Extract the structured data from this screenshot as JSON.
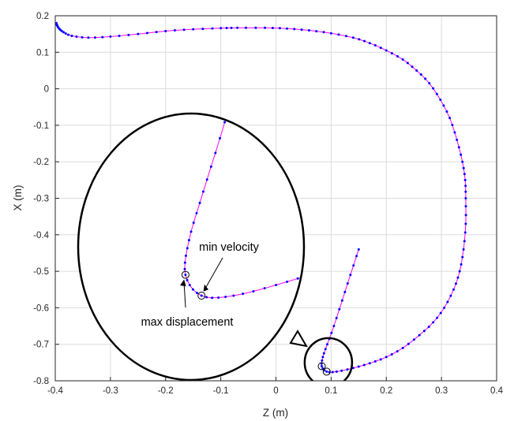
{
  "chart_data": {
    "type": "line",
    "title": "",
    "xlabel": "Z (m)",
    "ylabel": "X (m)",
    "xlim": [
      -0.4,
      0.4
    ],
    "ylim": [
      -0.8,
      0.2
    ],
    "x_ticks": [
      "-0.4",
      "-0.3",
      "-0.2",
      "-0.1",
      "0",
      "0.1",
      "0.2",
      "0.3",
      "0.4"
    ],
    "y_ticks": [
      "0.2",
      "0.1",
      "0",
      "-0.1",
      "-0.2",
      "-0.3",
      "-0.4",
      "-0.5",
      "-0.6",
      "-0.7",
      "-0.8"
    ],
    "grid": true,
    "line_color": "#ff00ff",
    "marker_color": "#0000ff",
    "series": [
      {
        "values_xy": [
          [
            0.15,
            -0.44
          ],
          [
            0.135,
            -0.51
          ],
          [
            0.12,
            -0.58
          ],
          [
            0.105,
            -0.65
          ],
          [
            0.093,
            -0.7
          ],
          [
            0.085,
            -0.735
          ],
          [
            0.083,
            -0.76
          ],
          [
            0.092,
            -0.775
          ],
          [
            0.11,
            -0.775
          ],
          [
            0.14,
            -0.765
          ],
          [
            0.17,
            -0.752
          ],
          [
            0.2,
            -0.735
          ],
          [
            0.23,
            -0.71
          ],
          [
            0.26,
            -0.675
          ],
          [
            0.285,
            -0.64
          ],
          [
            0.305,
            -0.6
          ],
          [
            0.322,
            -0.55
          ],
          [
            0.333,
            -0.5
          ],
          [
            0.34,
            -0.44
          ],
          [
            0.344,
            -0.37
          ],
          [
            0.344,
            -0.3
          ],
          [
            0.343,
            -0.25
          ],
          [
            0.338,
            -0.2
          ],
          [
            0.328,
            -0.14
          ],
          [
            0.315,
            -0.08
          ],
          [
            0.298,
            -0.03
          ],
          [
            0.278,
            0.015
          ],
          [
            0.255,
            0.05
          ],
          [
            0.23,
            0.08
          ],
          [
            0.2,
            0.105
          ],
          [
            0.17,
            0.125
          ],
          [
            0.14,
            0.14
          ],
          [
            0.1,
            0.152
          ],
          [
            0.06,
            0.16
          ],
          [
            0.02,
            0.165
          ],
          [
            -0.02,
            0.167
          ],
          [
            -0.07,
            0.167
          ],
          [
            -0.1,
            0.166
          ],
          [
            -0.15,
            0.163
          ],
          [
            -0.2,
            0.158
          ],
          [
            -0.25,
            0.15
          ],
          [
            -0.3,
            0.143
          ],
          [
            -0.34,
            0.14
          ],
          [
            -0.37,
            0.145
          ],
          [
            -0.385,
            0.155
          ],
          [
            -0.393,
            0.165
          ],
          [
            -0.397,
            0.175
          ],
          [
            -0.398,
            0.18
          ]
        ]
      }
    ],
    "markers": [
      {
        "label": "min velocity",
        "x": 0.092,
        "y": -0.775
      },
      {
        "label": "max displacement",
        "x": 0.083,
        "y": -0.76
      }
    ],
    "zoom": {
      "source_center": [
        0.095,
        -0.75
      ],
      "text_min_velocity": "min velocity",
      "text_max_displacement": "max displacement"
    }
  }
}
